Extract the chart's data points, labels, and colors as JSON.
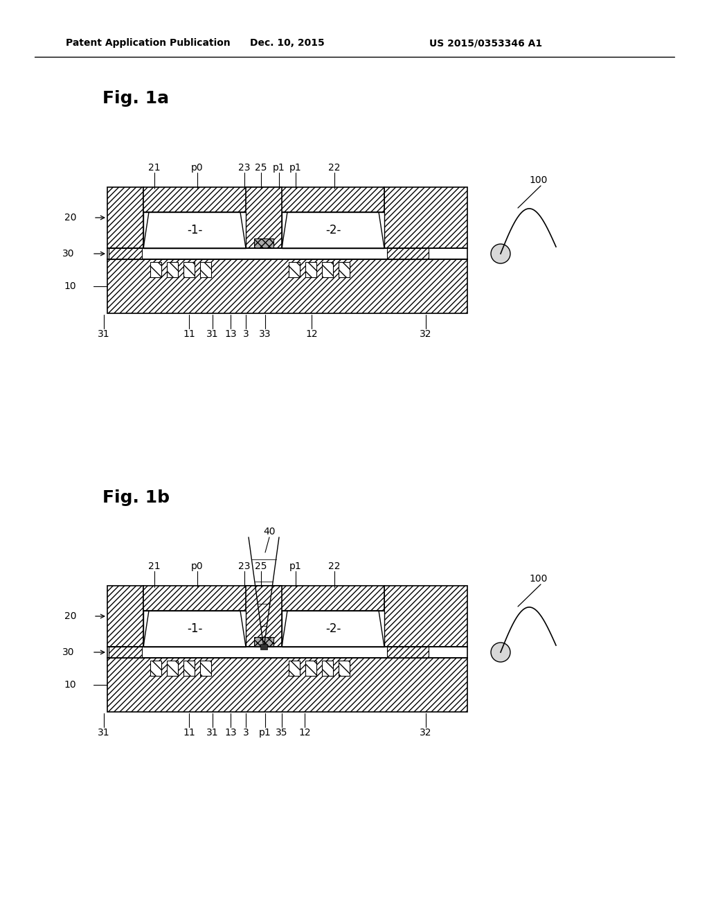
{
  "bg_color": "#ffffff",
  "header_left": "Patent Application Publication",
  "header_center": "Dec. 10, 2015",
  "header_right": "US 2015/0353346 A1",
  "fig1a_title": "Fig. 1a",
  "fig1b_title": "Fig. 1b"
}
